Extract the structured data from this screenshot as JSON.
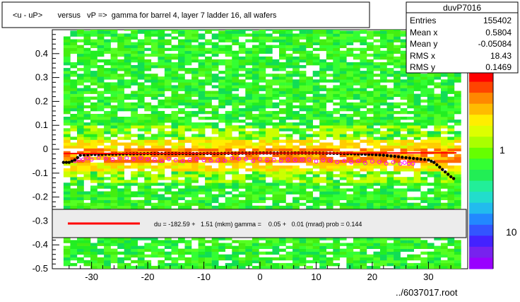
{
  "title": "<u - uP>       versus   vP =>  gamma for barrel 4, layer 7 ladder 16, all wafers",
  "stats": {
    "name": "duvP7016",
    "rows": [
      {
        "label": "Entries",
        "value": "155402"
      },
      {
        "label": "Mean x",
        "value": "0.5804"
      },
      {
        "label": "Mean y",
        "value": "-0.05084"
      },
      {
        "label": "RMS x",
        "value": "18.43"
      },
      {
        "label": "RMS y",
        "value": "0.1469"
      }
    ]
  },
  "fit_legend": "du = -182.59 +   1.51 (mkm) gamma =    0.05 +   0.01 (mrad) prob = 0.144",
  "footer": "../6037017.root",
  "colors": {
    "fit_line": "#ff0000",
    "profile_black": "#000000",
    "profile_magenta": "#ff00ff",
    "heat_low": "#22ee22",
    "heat_mid": "#ffee00",
    "heat_high": "#ff6600"
  },
  "chart_data": {
    "type": "heatmap",
    "title": "<u - uP>       versus   vP =>  gamma for barrel 4, layer 7 ladder 16, all wafers",
    "xlim": [
      -37,
      37
    ],
    "ylim": [
      -0.5,
      0.5
    ],
    "x_ticks": [
      -30,
      -20,
      -10,
      0,
      10,
      20,
      30
    ],
    "y_ticks": [
      -0.5,
      -0.4,
      -0.3,
      -0.2,
      -0.1,
      0,
      0.1,
      0.2,
      0.3,
      0.4
    ],
    "y_tick_labels": [
      "-0.5",
      "-0.4",
      "-0.3",
      "-0.2",
      "-0.1",
      "0",
      "0.1",
      "0.2",
      "0.3",
      "0.4"
    ],
    "colorbar_labels": [
      "1",
      "10"
    ],
    "fit_line": {
      "x": [
        -35,
        35
      ],
      "y": [
        -0.018,
        -0.015
      ]
    },
    "profile_black": {
      "x": [
        -35,
        -34,
        -33,
        -32,
        -30,
        -25,
        -20,
        -15,
        -10,
        -5,
        0,
        5,
        10,
        15,
        20,
        22,
        24,
        26,
        28,
        30,
        31,
        32,
        33,
        34,
        35
      ],
      "y": [
        -0.055,
        -0.055,
        -0.045,
        -0.025,
        -0.022,
        -0.02,
        -0.018,
        -0.018,
        -0.018,
        -0.017,
        -0.016,
        -0.016,
        -0.016,
        -0.018,
        -0.022,
        -0.025,
        -0.03,
        -0.035,
        -0.04,
        -0.045,
        -0.055,
        -0.075,
        -0.095,
        -0.115,
        -0.13
      ]
    },
    "profile_magenta": {
      "x": [
        -33,
        -30,
        -25,
        -20,
        -15,
        -10,
        -5,
        0,
        5,
        10,
        15,
        20,
        25,
        28
      ],
      "y": [
        -0.045,
        -0.04,
        -0.04,
        -0.042,
        -0.045,
        -0.045,
        -0.042,
        -0.045,
        -0.045,
        -0.048,
        -0.05,
        -0.055,
        -0.06,
        -0.055
      ]
    }
  }
}
